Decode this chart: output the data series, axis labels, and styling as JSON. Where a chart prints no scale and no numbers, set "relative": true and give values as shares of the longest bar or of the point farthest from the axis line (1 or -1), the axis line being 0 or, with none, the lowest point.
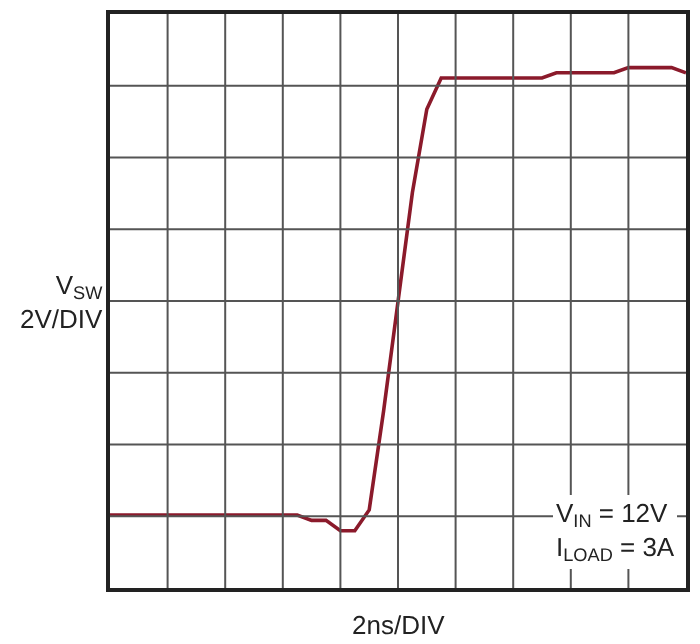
{
  "chart_data": {
    "type": "line",
    "relative": true,
    "xlabel": "2ns/DIV",
    "ylabel": "V$_{SW}$\n2V/DIV",
    "categories": [
      null,
      null,
      null,
      null,
      null,
      null,
      null,
      null,
      null,
      null,
      null,
      null,
      null,
      null,
      null,
      null,
      null,
      null,
      null,
      null,
      null,
      null,
      null,
      null,
      null,
      null,
      null,
      null,
      null,
      null,
      null,
      null,
      null,
      null,
      null,
      null,
      null,
      null,
      null,
      null,
      null
    ],
    "series": [
      {
        "color": "#8b1a2b",
        "values": [
          0.14,
          0.14,
          0.14,
          0.14,
          0.14,
          0.14,
          0.14,
          0.14,
          0.14,
          0.14,
          0.14,
          0.14,
          0.14,
          0.14,
          0.13,
          0.13,
          0.11,
          0.11,
          0.15,
          0.34,
          0.55,
          0.76,
          0.92,
          0.98,
          0.98,
          0.98,
          0.98,
          0.98,
          0.98,
          0.98,
          0.98,
          0.99,
          0.99,
          0.99,
          0.99,
          0.99,
          1,
          1,
          1,
          1,
          0.99
        ]
      }
    ],
    "annotations": [
      "V$_{IN}$ = 12V\nI$_{LOAD}$ = 3A"
    ],
    "grid": true,
    "marker": "none",
    "line_style": "solid"
  }
}
